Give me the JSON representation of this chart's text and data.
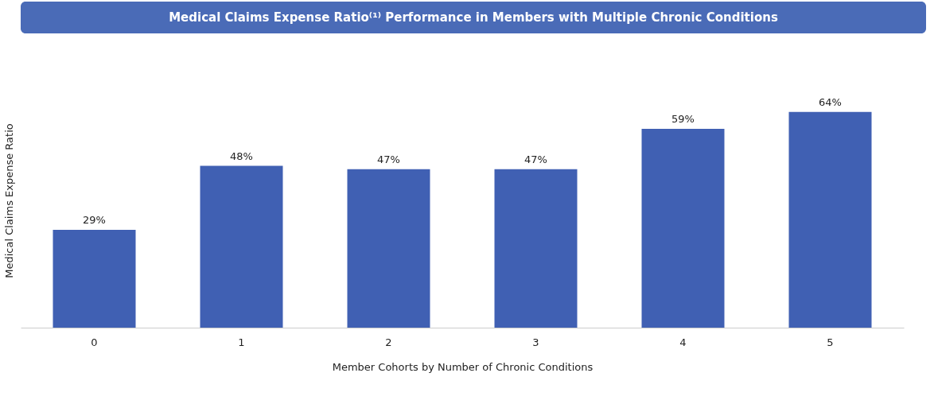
{
  "chart_data": {
    "type": "bar",
    "title": "Medical Claims Expense Ratio⁽¹⁾ Performance in Members with Multiple Chronic Conditions",
    "xlabel": "Member Cohorts by Number of Chronic Conditions",
    "ylabel": "Medical Claims Expense Ratio",
    "categories": [
      "0",
      "1",
      "2",
      "3",
      "4",
      "5"
    ],
    "values": [
      29,
      48,
      47,
      47,
      59,
      64
    ],
    "value_labels": [
      "29%",
      "48%",
      "47%",
      "47%",
      "59%",
      "64%"
    ],
    "color": "#4060b3"
  }
}
